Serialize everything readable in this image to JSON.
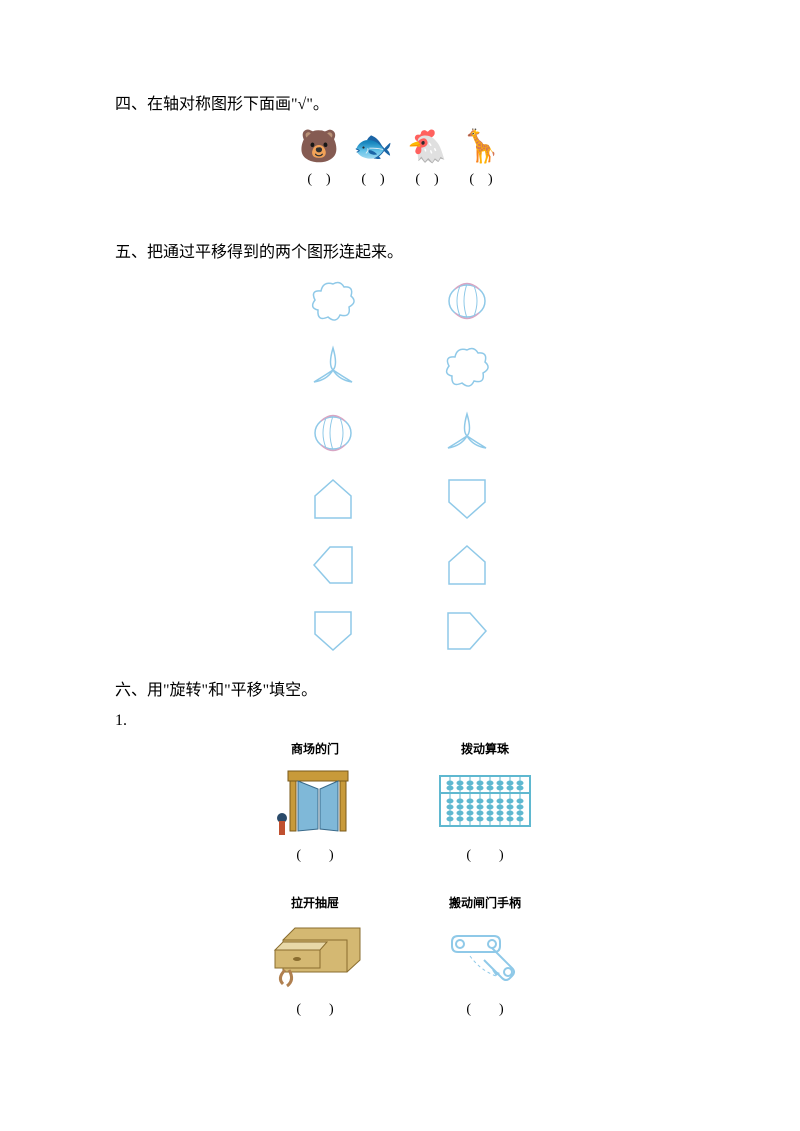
{
  "q4": {
    "title": "四、在轴对称图形下面画\"√\"。",
    "items": [
      {
        "emoji": "🐻",
        "blank": "(　)"
      },
      {
        "emoji": "🐟",
        "blank": "(　)"
      },
      {
        "emoji": "🐔",
        "blank": "(　)"
      },
      {
        "emoji": "🦒",
        "blank": "(　)"
      }
    ],
    "emoji_fontsize": 32,
    "blank_fontsize": 14
  },
  "q5": {
    "title": "五、把通过平移得到的两个图形连起来。",
    "shape_stroke": "#8fc9e8",
    "shape_stroke2": "#d8a6c4",
    "shape_stroke_width": 1.5,
    "shape_size": 50,
    "left_shapes": [
      "cloud",
      "tripoint",
      "lantern",
      "house-up",
      "house-left",
      "house-down"
    ],
    "right_shapes": [
      "lantern",
      "cloud",
      "tripoint",
      "house-down",
      "house-up",
      "house-right"
    ]
  },
  "q6": {
    "title": "六、用\"旋转\"和\"平移\"填空。",
    "subnum": "1.",
    "row1": [
      {
        "label": "商场的门",
        "icon": "door",
        "blank": "(　　)"
      },
      {
        "label": "拨动算珠",
        "icon": "abacus",
        "blank": "(　　)"
      }
    ],
    "row2": [
      {
        "label": "拉开抽屉",
        "icon": "drawer",
        "blank": "(　　)"
      },
      {
        "label": "搬动闸门手柄",
        "icon": "lever",
        "blank": "(　　)"
      }
    ],
    "label_fontsize": 12,
    "blank_fontsize": 14,
    "colors": {
      "door_brown": "#c89a3a",
      "door_blue": "#7fb8d8",
      "abacus_cyan": "#5fb8d0",
      "drawer_tan": "#d4b872",
      "drawer_dark": "#8a6d2f",
      "lever_blue": "#8fc9e8"
    }
  }
}
